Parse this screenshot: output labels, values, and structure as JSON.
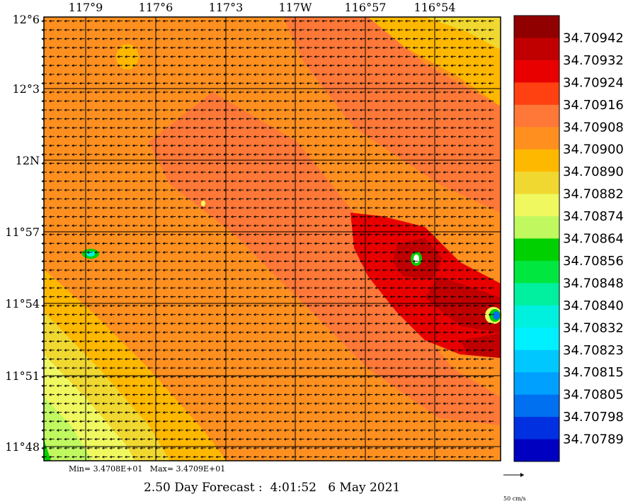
{
  "map": {
    "lon_labels": [
      "117°9",
      "117°6",
      "117°3",
      "117W",
      "116°57",
      "116°54"
    ],
    "lat_labels": [
      "12°6",
      "12°3",
      "12N",
      "11°57",
      "11°54",
      "11°51",
      "11°48"
    ],
    "stats": "Min= 3.4708E+01   Max= 3.4709E+01",
    "forecast_title": "2.50 Day Forecast :  4:01:52   6 May 2021",
    "vector_scale_label": "50 cm/s"
  },
  "colorbar": {
    "levels": [
      {
        "value": "34.70942",
        "color": "#900000"
      },
      {
        "value": "34.70932",
        "color": "#c00000"
      },
      {
        "value": "34.70924",
        "color": "#e80000"
      },
      {
        "value": "34.70916",
        "color": "#ff4010"
      },
      {
        "value": "34.70908",
        "color": "#ff7838"
      },
      {
        "value": "34.70900",
        "color": "#ff9020"
      },
      {
        "value": "34.70890",
        "color": "#ffb800"
      },
      {
        "value": "34.70882",
        "color": "#f0d830"
      },
      {
        "value": "34.70874",
        "color": "#f0f860"
      },
      {
        "value": "34.70864",
        "color": "#c0f860"
      },
      {
        "value": "34.70856",
        "color": "#00d000"
      },
      {
        "value": "34.70848",
        "color": "#00e840"
      },
      {
        "value": "34.70840",
        "color": "#00f0a0"
      },
      {
        "value": "34.70832",
        "color": "#00f0e0"
      },
      {
        "value": "34.70823",
        "color": "#00f0ff"
      },
      {
        "value": "34.70815",
        "color": "#00c8ff"
      },
      {
        "value": "34.70805",
        "color": "#00a0ff"
      },
      {
        "value": "34.70798",
        "color": "#0070f0"
      },
      {
        "value": "34.70789",
        "color": "#0030e0"
      },
      {
        "value": "",
        "color": "#0000c0"
      }
    ]
  }
}
